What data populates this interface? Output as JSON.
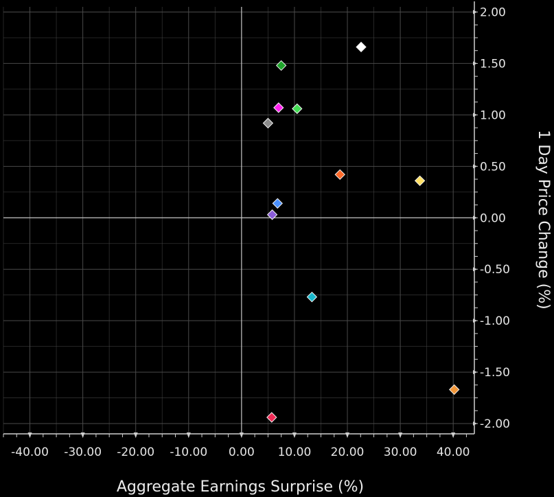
{
  "chart_data": {
    "type": "scatter",
    "title": "",
    "xlabel": "Aggregate Earnings Surprise (%)",
    "ylabel": "1 Day Price Change (%)",
    "xlim": [
      -45,
      44
    ],
    "ylim": [
      -2.1,
      2.05
    ],
    "x_ticks": [
      -40,
      -30,
      -20,
      -10,
      0,
      10,
      20,
      30,
      40
    ],
    "x_tick_labels": [
      "-40.00",
      "-30.00",
      "-20.00",
      "-10.00",
      "0.00",
      "10.00",
      "20.00",
      "30.00",
      "40.00"
    ],
    "y_ticks": [
      2.0,
      1.5,
      1.0,
      0.5,
      0.0,
      -0.5,
      -1.0,
      -1.5,
      -2.0
    ],
    "y_tick_labels": [
      "2.00",
      "1.50",
      "1.00",
      "0.50",
      "0.00",
      "-0.50",
      "-1.00",
      "-1.50",
      "-2.00"
    ],
    "y_axis_position": "right",
    "marker": "diamond",
    "grid": true,
    "legend": "none",
    "background": "#000000",
    "grid_color": "#4a4a4a",
    "zero_line_color": "#c8c8c8",
    "axis_color": "#cfcfcf",
    "text_color": "#e6e6e6",
    "points": [
      {
        "x": 22.6,
        "y": 1.66,
        "color": "#ffffff"
      },
      {
        "x": 7.5,
        "y": 1.48,
        "color": "#1fa52c"
      },
      {
        "x": 7.0,
        "y": 1.07,
        "color": "#ff22ee"
      },
      {
        "x": 10.5,
        "y": 1.06,
        "color": "#44dd55"
      },
      {
        "x": 5.0,
        "y": 0.92,
        "color": "#8c8c8c"
      },
      {
        "x": 18.6,
        "y": 0.42,
        "color": "#ff6a2a"
      },
      {
        "x": 33.7,
        "y": 0.36,
        "color": "#ffe066"
      },
      {
        "x": 6.8,
        "y": 0.14,
        "color": "#4a90ff"
      },
      {
        "x": 5.8,
        "y": 0.03,
        "color": "#8a5cd8"
      },
      {
        "x": 13.3,
        "y": -0.77,
        "color": "#18b8cc"
      },
      {
        "x": 40.2,
        "y": -1.67,
        "color": "#f2973a"
      },
      {
        "x": 5.7,
        "y": -1.94,
        "color": "#ee2a55"
      }
    ]
  }
}
